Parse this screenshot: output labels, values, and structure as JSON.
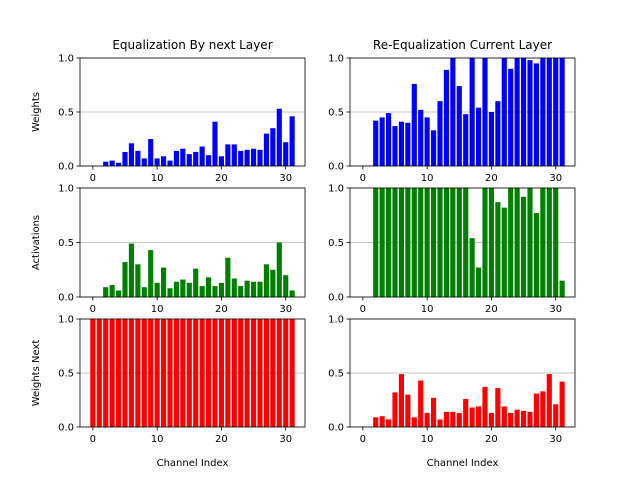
{
  "chart_data": [
    {
      "type": "bar",
      "title": "Equalization By next Layer",
      "ylabel": "Weights",
      "color": "#0000ff",
      "grid": true,
      "x": [
        0,
        1,
        2,
        3,
        4,
        5,
        6,
        7,
        8,
        9,
        10,
        11,
        12,
        13,
        14,
        15,
        16,
        17,
        18,
        19,
        20,
        21,
        22,
        23,
        24,
        25,
        26,
        27,
        28,
        29,
        30,
        31
      ],
      "values": [
        0,
        0,
        0.04,
        0.05,
        0.03,
        0.13,
        0.21,
        0.14,
        0.07,
        0.25,
        0.07,
        0.09,
        0.05,
        0.14,
        0.16,
        0.11,
        0.13,
        0.18,
        0.1,
        0.41,
        0.09,
        0.2,
        0.2,
        0.14,
        0.15,
        0.16,
        0.15,
        0.3,
        0.35,
        0.53,
        0.22,
        0.46
      ],
      "xlim": [
        -2,
        33
      ],
      "xticks": [
        0,
        10,
        20,
        30
      ],
      "ylim": [
        0,
        1
      ],
      "yticks": [
        {
          "value": 0,
          "label": "0.0"
        },
        0.5,
        {
          "value": 1,
          "label": "1.0"
        }
      ]
    },
    {
      "type": "bar",
      "title": "Re-Equalization Current Layer",
      "color": "#0000ff",
      "grid": true,
      "x": [
        0,
        1,
        2,
        3,
        4,
        5,
        6,
        7,
        8,
        9,
        10,
        11,
        12,
        13,
        14,
        15,
        16,
        17,
        18,
        19,
        20,
        21,
        22,
        23,
        24,
        25,
        26,
        27,
        28,
        29,
        30,
        31
      ],
      "values": [
        0,
        0,
        0.42,
        0.45,
        0.49,
        0.37,
        0.41,
        0.4,
        0.76,
        0.52,
        0.45,
        0.33,
        0.6,
        0.89,
        1,
        0.74,
        0.48,
        1,
        0.54,
        1,
        0.5,
        0.6,
        1,
        0.9,
        1,
        1,
        0.98,
        0.95,
        1,
        1,
        1,
        1
      ],
      "xlim": [
        -2,
        33
      ],
      "xticks": [
        0,
        10,
        20,
        30
      ],
      "ylim": [
        0,
        1
      ],
      "yticks": [
        {
          "value": 0,
          "label": "0.0"
        },
        0.5,
        {
          "value": 1,
          "label": "1.0"
        }
      ]
    },
    {
      "type": "bar",
      "ylabel": "Activations",
      "color": "#008000",
      "grid": true,
      "x": [
        0,
        1,
        2,
        3,
        4,
        5,
        6,
        7,
        8,
        9,
        10,
        11,
        12,
        13,
        14,
        15,
        16,
        17,
        18,
        19,
        20,
        21,
        22,
        23,
        24,
        25,
        26,
        27,
        28,
        29,
        30,
        31
      ],
      "values": [
        0,
        0,
        0.09,
        0.11,
        0.06,
        0.32,
        0.49,
        0.3,
        0.09,
        0.43,
        0.13,
        0.27,
        0.08,
        0.14,
        0.16,
        0.13,
        0.26,
        0.1,
        0.18,
        0.1,
        0.13,
        0.36,
        0.17,
        0.1,
        0.15,
        0.14,
        0.14,
        0.3,
        0.25,
        0.5,
        0.2,
        0.06
      ],
      "xlim": [
        -2,
        33
      ],
      "xticks": [
        0,
        10,
        20,
        30
      ],
      "ylim": [
        0,
        1
      ],
      "yticks": [
        {
          "value": 0,
          "label": "0.0"
        },
        0.5,
        {
          "value": 1,
          "label": "1.0"
        }
      ]
    },
    {
      "type": "bar",
      "color": "#008000",
      "grid": true,
      "x": [
        0,
        1,
        2,
        3,
        4,
        5,
        6,
        7,
        8,
        9,
        10,
        11,
        12,
        13,
        14,
        15,
        16,
        17,
        18,
        19,
        20,
        21,
        22,
        23,
        24,
        25,
        26,
        27,
        28,
        29,
        30,
        31
      ],
      "values": [
        0,
        0,
        1,
        1,
        1,
        1,
        1,
        1,
        1,
        1,
        1,
        1,
        1,
        1,
        1,
        1,
        1,
        0.54,
        0.27,
        1,
        1,
        0.87,
        0.82,
        1,
        1,
        0.92,
        1,
        0.77,
        1,
        1,
        1,
        0.15
      ],
      "xlim": [
        -2,
        33
      ],
      "xticks": [
        0,
        10,
        20,
        30
      ],
      "ylim": [
        0,
        1
      ],
      "yticks": [
        {
          "value": 0,
          "label": "0.0"
        },
        0.5,
        {
          "value": 1,
          "label": "1.0"
        }
      ]
    },
    {
      "type": "bar",
      "ylabel": "Weights Next",
      "xlabel": "Channel Index",
      "color": "#ff0000",
      "grid": true,
      "x": [
        0,
        1,
        2,
        3,
        4,
        5,
        6,
        7,
        8,
        9,
        10,
        11,
        12,
        13,
        14,
        15,
        16,
        17,
        18,
        19,
        20,
        21,
        22,
        23,
        24,
        25,
        26,
        27,
        28,
        29,
        30,
        31
      ],
      "values": [
        1,
        1,
        1,
        1,
        1,
        1,
        1,
        1,
        1,
        1,
        1,
        1,
        1,
        1,
        1,
        1,
        1,
        1,
        1,
        1,
        1,
        1,
        1,
        1,
        1,
        1,
        1,
        1,
        1,
        1,
        1,
        1
      ],
      "xlim": [
        -2,
        33
      ],
      "xticks": [
        0,
        10,
        20,
        30
      ],
      "ylim": [
        0,
        1
      ],
      "yticks": [
        {
          "value": 0,
          "label": "0.0"
        },
        0.5,
        {
          "value": 1,
          "label": "1.0"
        }
      ]
    },
    {
      "type": "bar",
      "xlabel": "Channel Index",
      "color": "#ff0000",
      "grid": true,
      "x": [
        0,
        1,
        2,
        3,
        4,
        5,
        6,
        7,
        8,
        9,
        10,
        11,
        12,
        13,
        14,
        15,
        16,
        17,
        18,
        19,
        20,
        21,
        22,
        23,
        24,
        25,
        26,
        27,
        28,
        29,
        30,
        31
      ],
      "values": [
        0,
        0,
        0.09,
        0.1,
        0.07,
        0.32,
        0.49,
        0.3,
        0.09,
        0.43,
        0.13,
        0.27,
        0.07,
        0.14,
        0.14,
        0.13,
        0.26,
        0.18,
        0.19,
        0.37,
        0.13,
        0.36,
        0.19,
        0.13,
        0.16,
        0.15,
        0.14,
        0.31,
        0.33,
        0.49,
        0.21,
        0.42
      ],
      "xlim": [
        -2,
        33
      ],
      "xticks": [
        0,
        10,
        20,
        30
      ],
      "ylim": [
        0,
        1
      ],
      "yticks": [
        {
          "value": 0,
          "label": "0.0"
        },
        0.5,
        {
          "value": 1,
          "label": "1.0"
        }
      ]
    }
  ]
}
